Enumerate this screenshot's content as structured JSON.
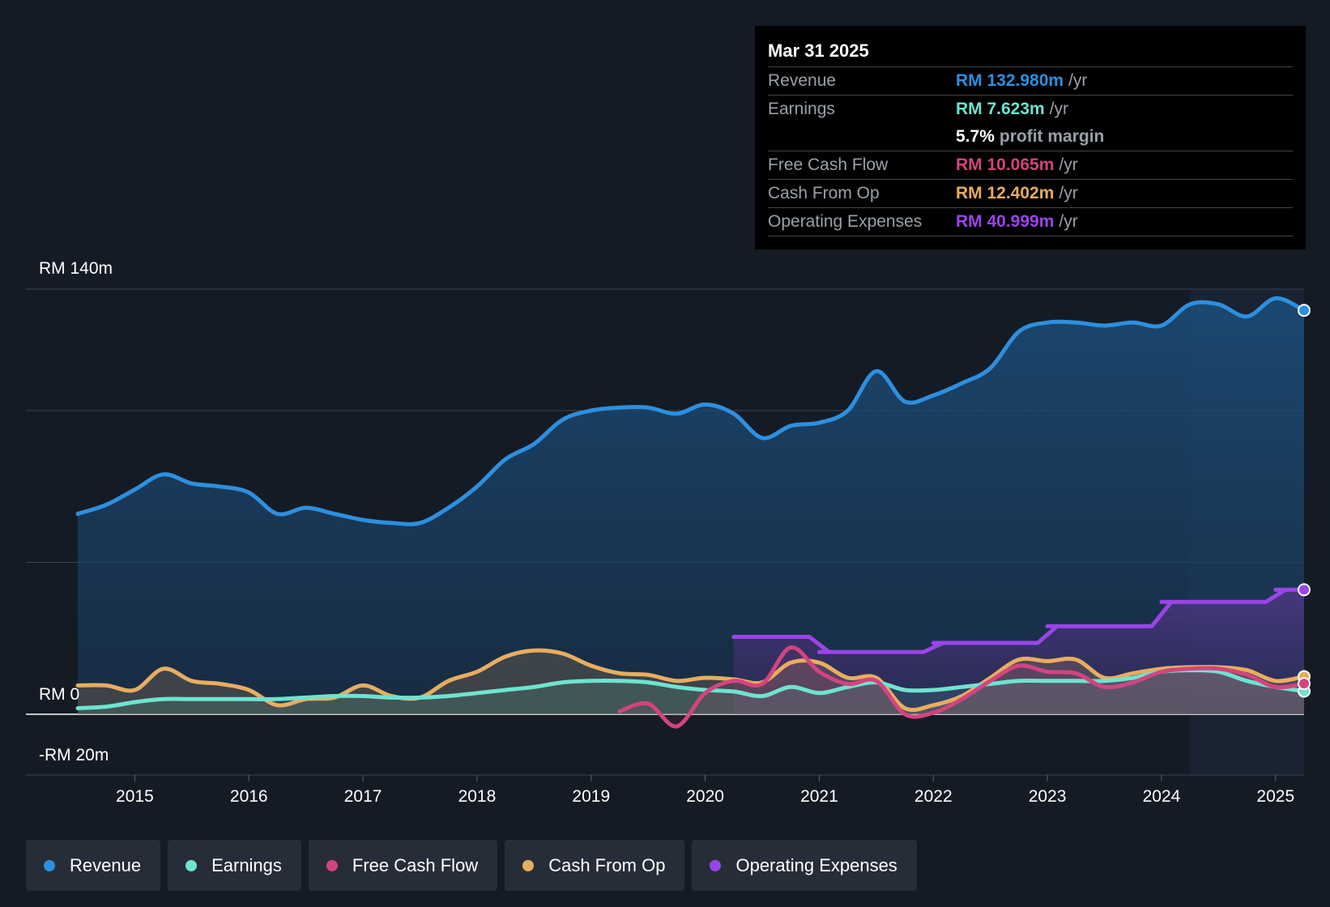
{
  "tooltip": {
    "date": "Mar 31 2025",
    "revenue": {
      "label": "Revenue",
      "value": "RM 132.980m",
      "unit": "/yr"
    },
    "earnings": {
      "label": "Earnings",
      "value": "RM 7.623m",
      "unit": "/yr"
    },
    "margin": {
      "value": "5.7%",
      "text": "profit margin"
    },
    "fcf": {
      "label": "Free Cash Flow",
      "value": "RM 10.065m",
      "unit": "/yr"
    },
    "cfo": {
      "label": "Cash From Op",
      "value": "RM 12.402m",
      "unit": "/yr"
    },
    "opex": {
      "label": "Operating Expenses",
      "value": "RM 40.999m",
      "unit": "/yr"
    }
  },
  "legend": {
    "revenue": "Revenue",
    "earnings": "Earnings",
    "fcf": "Free Cash Flow",
    "cfo": "Cash From Op",
    "opex": "Operating Expenses"
  },
  "colors": {
    "revenue": "#2d8fe0",
    "earnings": "#6ee3d0",
    "fcf": "#d2447f",
    "cfo": "#e8ad5f",
    "opex": "#9b44e8"
  },
  "chart_data": {
    "type": "area",
    "ylim": [
      -20,
      140
    ],
    "y_tick_labels": [
      "RM 140m",
      "RM 0",
      "-RM 20m"
    ],
    "x_tick_labels": [
      "2015",
      "2016",
      "2017",
      "2018",
      "2019",
      "2020",
      "2021",
      "2022",
      "2023",
      "2024",
      "2025"
    ],
    "x_ticks": [
      2015,
      2016,
      2017,
      2018,
      2019,
      2020,
      2021,
      2022,
      2023,
      2024,
      2025
    ],
    "xlim": [
      2014.05,
      2025.25
    ],
    "forecast_start": 2024.25,
    "series": [
      {
        "key": "revenue",
        "name": "Revenue",
        "points": [
          [
            2014.5,
            66
          ],
          [
            2014.75,
            69
          ],
          [
            2015.0,
            74
          ],
          [
            2015.25,
            79
          ],
          [
            2015.5,
            76
          ],
          [
            2015.75,
            75
          ],
          [
            2016.0,
            73
          ],
          [
            2016.25,
            66
          ],
          [
            2016.5,
            68
          ],
          [
            2016.75,
            66
          ],
          [
            2017.0,
            64
          ],
          [
            2017.25,
            63
          ],
          [
            2017.5,
            63
          ],
          [
            2017.75,
            68
          ],
          [
            2018.0,
            75
          ],
          [
            2018.25,
            84
          ],
          [
            2018.5,
            89
          ],
          [
            2018.75,
            97
          ],
          [
            2019.0,
            100
          ],
          [
            2019.25,
            101
          ],
          [
            2019.5,
            101
          ],
          [
            2019.75,
            99
          ],
          [
            2020.0,
            102
          ],
          [
            2020.25,
            99
          ],
          [
            2020.5,
            91
          ],
          [
            2020.75,
            95
          ],
          [
            2021.0,
            96
          ],
          [
            2021.25,
            100
          ],
          [
            2021.5,
            113
          ],
          [
            2021.75,
            103
          ],
          [
            2022.0,
            105
          ],
          [
            2022.25,
            109
          ],
          [
            2022.5,
            114
          ],
          [
            2022.75,
            126
          ],
          [
            2023.0,
            129
          ],
          [
            2023.25,
            129
          ],
          [
            2023.5,
            128
          ],
          [
            2023.75,
            129
          ],
          [
            2024.0,
            128
          ],
          [
            2024.25,
            135
          ],
          [
            2024.5,
            135
          ],
          [
            2024.75,
            131
          ],
          [
            2025.0,
            137
          ],
          [
            2025.25,
            133
          ]
        ]
      },
      {
        "key": "earnings",
        "name": "Earnings",
        "points": [
          [
            2014.5,
            2
          ],
          [
            2014.75,
            2.5
          ],
          [
            2015.0,
            4
          ],
          [
            2015.25,
            5
          ],
          [
            2015.5,
            5
          ],
          [
            2015.75,
            5
          ],
          [
            2016.0,
            5
          ],
          [
            2016.25,
            5
          ],
          [
            2016.5,
            5.5
          ],
          [
            2016.75,
            6
          ],
          [
            2017.0,
            6
          ],
          [
            2017.25,
            5.5
          ],
          [
            2017.5,
            5.5
          ],
          [
            2017.75,
            6
          ],
          [
            2018.0,
            7
          ],
          [
            2018.25,
            8
          ],
          [
            2018.5,
            9
          ],
          [
            2018.75,
            10.5
          ],
          [
            2019.0,
            11
          ],
          [
            2019.25,
            11
          ],
          [
            2019.5,
            10.5
          ],
          [
            2019.75,
            9
          ],
          [
            2020.0,
            8
          ],
          [
            2020.25,
            7.5
          ],
          [
            2020.5,
            6
          ],
          [
            2020.75,
            9
          ],
          [
            2021.0,
            7
          ],
          [
            2021.25,
            9
          ],
          [
            2021.5,
            10.5
          ],
          [
            2021.75,
            8
          ],
          [
            2022.0,
            8
          ],
          [
            2022.25,
            9
          ],
          [
            2022.5,
            10
          ],
          [
            2022.75,
            11
          ],
          [
            2023.0,
            11
          ],
          [
            2023.25,
            11
          ],
          [
            2023.5,
            11
          ],
          [
            2023.75,
            12
          ],
          [
            2024.0,
            14
          ],
          [
            2024.25,
            14.5
          ],
          [
            2024.5,
            14
          ],
          [
            2024.75,
            11
          ],
          [
            2025.0,
            9
          ],
          [
            2025.25,
            7.6
          ]
        ]
      },
      {
        "key": "fcf",
        "name": "Free Cash Flow",
        "points": [
          [
            2019.25,
            1
          ],
          [
            2019.5,
            3.5
          ],
          [
            2019.75,
            -4
          ],
          [
            2020.0,
            7
          ],
          [
            2020.25,
            11
          ],
          [
            2020.5,
            10
          ],
          [
            2020.75,
            22
          ],
          [
            2021.0,
            14
          ],
          [
            2021.25,
            10
          ],
          [
            2021.5,
            11
          ],
          [
            2021.75,
            0
          ],
          [
            2022.0,
            0.5
          ],
          [
            2022.25,
            5
          ],
          [
            2022.5,
            11
          ],
          [
            2022.75,
            16
          ],
          [
            2023.0,
            14
          ],
          [
            2023.25,
            13.5
          ],
          [
            2023.5,
            9
          ],
          [
            2023.75,
            10.5
          ],
          [
            2024.0,
            14
          ],
          [
            2024.25,
            15
          ],
          [
            2024.5,
            15
          ],
          [
            2024.75,
            13
          ],
          [
            2025.0,
            9
          ],
          [
            2025.25,
            10.1
          ]
        ]
      },
      {
        "key": "cfo",
        "name": "Cash From Op",
        "points": [
          [
            2014.5,
            9.5
          ],
          [
            2014.75,
            9.5
          ],
          [
            2015.0,
            8
          ],
          [
            2015.25,
            15
          ],
          [
            2015.5,
            11
          ],
          [
            2015.75,
            10
          ],
          [
            2016.0,
            8
          ],
          [
            2016.25,
            3
          ],
          [
            2016.5,
            5
          ],
          [
            2016.75,
            5.5
          ],
          [
            2017.0,
            9.5
          ],
          [
            2017.25,
            6
          ],
          [
            2017.5,
            5.5
          ],
          [
            2017.75,
            11
          ],
          [
            2018.0,
            14
          ],
          [
            2018.25,
            19
          ],
          [
            2018.5,
            21
          ],
          [
            2018.75,
            20
          ],
          [
            2019.0,
            16
          ],
          [
            2019.25,
            13.5
          ],
          [
            2019.5,
            13
          ],
          [
            2019.75,
            11
          ],
          [
            2020.0,
            12
          ],
          [
            2020.25,
            11.5
          ],
          [
            2020.5,
            10.5
          ],
          [
            2020.75,
            17
          ],
          [
            2021.0,
            17
          ],
          [
            2021.25,
            12
          ],
          [
            2021.5,
            12
          ],
          [
            2021.75,
            2
          ],
          [
            2022.0,
            3
          ],
          [
            2022.25,
            6
          ],
          [
            2022.5,
            12
          ],
          [
            2022.75,
            18
          ],
          [
            2023.0,
            17.5
          ],
          [
            2023.25,
            18
          ],
          [
            2023.5,
            12
          ],
          [
            2023.75,
            13.5
          ],
          [
            2024.0,
            15
          ],
          [
            2024.25,
            15.5
          ],
          [
            2024.5,
            15.5
          ],
          [
            2024.75,
            14.5
          ],
          [
            2025.0,
            11
          ],
          [
            2025.25,
            12.4
          ]
        ]
      },
      {
        "key": "opex",
        "name": "Operating Expenses",
        "points": [
          [
            2020.25,
            25.5
          ],
          [
            2020.5,
            25.5
          ],
          [
            2020.75,
            25.5
          ],
          [
            2021.0,
            20.5
          ],
          [
            2021.25,
            20.5
          ],
          [
            2021.5,
            20.5
          ],
          [
            2021.75,
            20.5
          ],
          [
            2022.0,
            23.5
          ],
          [
            2022.25,
            23.5
          ],
          [
            2022.5,
            23.5
          ],
          [
            2022.75,
            23.5
          ],
          [
            2023.0,
            29
          ],
          [
            2023.25,
            29
          ],
          [
            2023.5,
            29
          ],
          [
            2023.75,
            29
          ],
          [
            2024.0,
            37
          ],
          [
            2024.25,
            37
          ],
          [
            2024.5,
            37
          ],
          [
            2024.75,
            37
          ],
          [
            2025.0,
            41
          ],
          [
            2025.25,
            41
          ]
        ]
      }
    ]
  }
}
